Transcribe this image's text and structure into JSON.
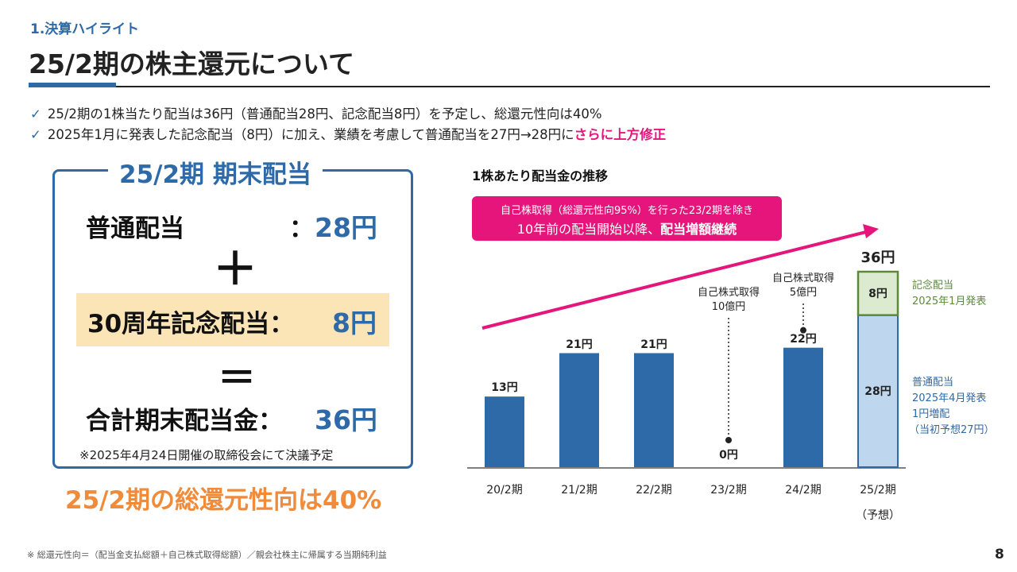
{
  "section_label": "1.決算ハイライト",
  "page_title": "25/2期の株主還元について",
  "bullets": [
    {
      "text": "25/2期の1株当たり配当は36円（普通配当28円、記念配当8円）を予定し、総還元性向は40%",
      "highlight": ""
    },
    {
      "text": "2025年1月に発表した記念配当（8円）に加え、業績を考慮して普通配当を27円→28円に",
      "highlight": "さらに上方修正"
    }
  ],
  "dividend_box": {
    "title": "25/2期 期末配当",
    "ordinary_label": "普通配当",
    "ordinary_value": "28円",
    "plus": "＋",
    "memorial_label": "30周年記念配当：",
    "memorial_value": "8円",
    "equals": "＝",
    "total_label": "合計期末配当金：",
    "total_value": "36円",
    "colon": "：",
    "note": "※2025年4月24日開催の取締役会にて決議予定"
  },
  "total_return_ratio": "25/2期の総還元性向は40%",
  "footnote": "※ 総還元性向＝（配当金支払総額＋自己株式取得総額）／親会社株主に帰属する当期純利益",
  "page_number": "8",
  "chart_title": "1株あたり配当金の推移",
  "callout": {
    "line1": "自己株取得（総還元性向95%）を行った23/2期を除き",
    "line2_prefix": "10年前の配当開始以降、",
    "line2_bold": "配当増額継続"
  },
  "chart_data": {
    "type": "bar",
    "categories": [
      "20/2期",
      "21/2期",
      "22/2期",
      "23/2期",
      "24/2期",
      "25/2期"
    ],
    "category_sublabels": [
      "",
      "",
      "",
      "",
      "",
      "（予想）"
    ],
    "series": [
      {
        "name": "普通配当",
        "values": [
          13,
          21,
          21,
          0,
          22,
          28
        ]
      },
      {
        "name": "記念配当",
        "values": [
          0,
          0,
          0,
          0,
          0,
          8
        ]
      }
    ],
    "bar_labels": [
      "13円",
      "21円",
      "21円",
      "0円",
      "22円",
      "28円"
    ],
    "memorial_label": "8円",
    "total_label": "36円",
    "ylim": [
      0,
      38
    ],
    "annotations": [
      {
        "category": "23/2期",
        "text1": "自己株式取得",
        "text2": "10億円"
      },
      {
        "category": "24/2期",
        "text1": "自己株式取得",
        "text2": "5億円"
      }
    ],
    "side_notes": {
      "memorial": [
        "記念配当",
        "2025年1月発表"
      ],
      "ordinary": [
        "普通配当",
        "2025年4月発表",
        "1円増配",
        "（当初予想27円）"
      ]
    },
    "colors": {
      "bar": "#2e6aa8",
      "forecast_fill": "#bed7ef",
      "memorial_fill": "#dcebd0",
      "memorial_border": "#5a8a3a",
      "arrow": "#e5157b"
    }
  }
}
